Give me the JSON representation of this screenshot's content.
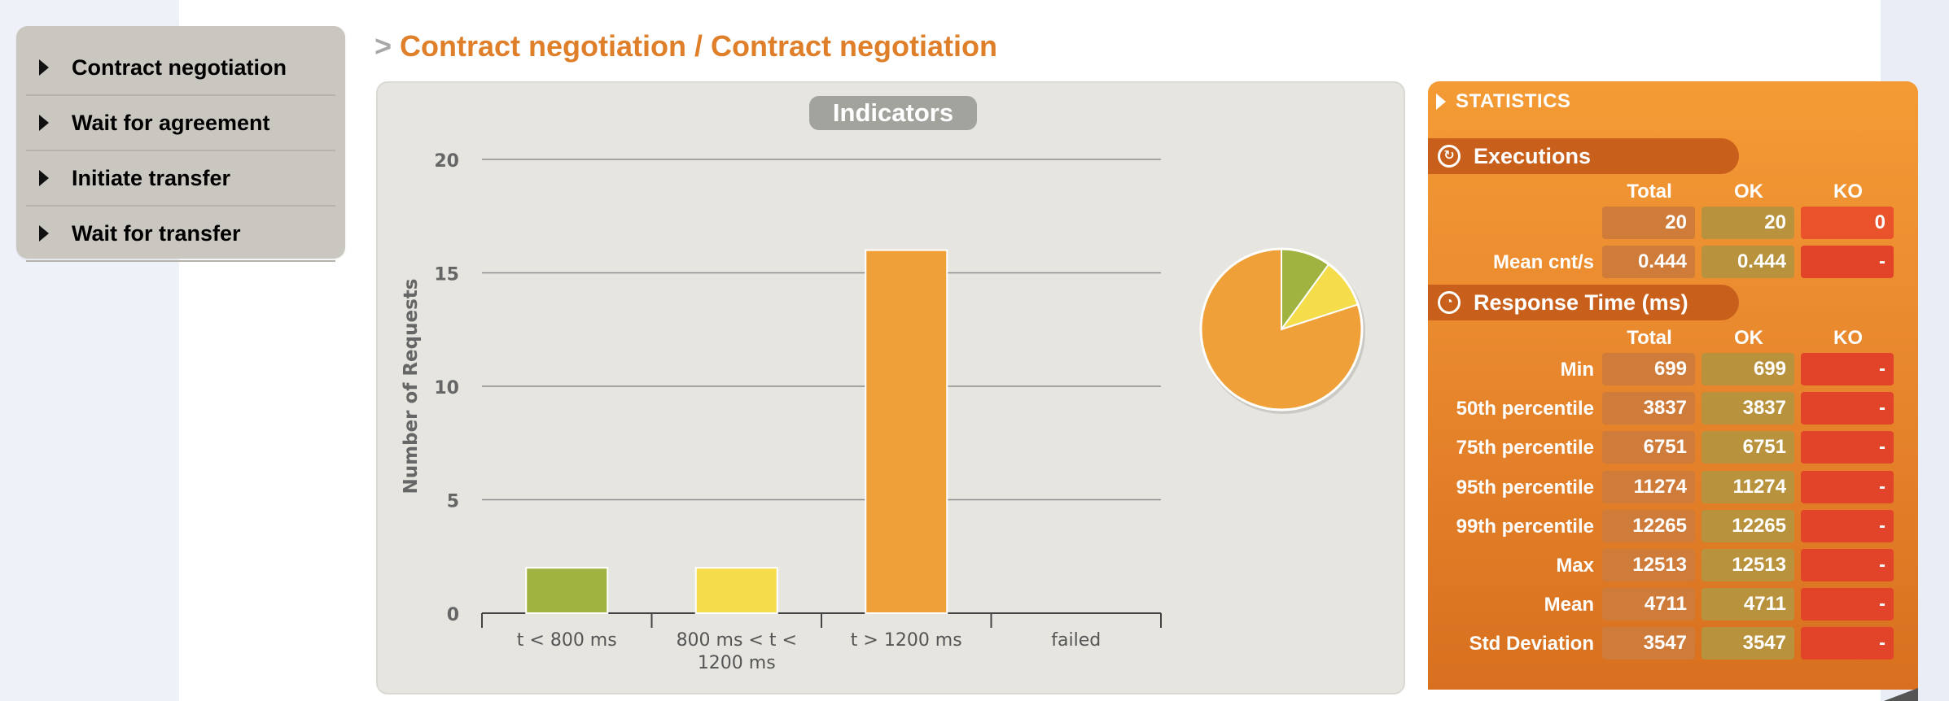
{
  "sidebar": {
    "items": [
      {
        "label": "Contract negotiation"
      },
      {
        "label": "Wait for agreement"
      },
      {
        "label": "Initiate transfer"
      },
      {
        "label": "Wait for transfer"
      }
    ]
  },
  "title": {
    "prefix": ">",
    "text": "Contract negotiation / Contract negotiation"
  },
  "chart": {
    "badge": "Indicators"
  },
  "chart_data": [
    {
      "type": "bar",
      "title": "Indicators",
      "ylabel": "Number of Requests",
      "xlabel": "",
      "ylim": [
        0,
        20
      ],
      "yticks": [
        0,
        5,
        10,
        15,
        20
      ],
      "grid": true,
      "categories": [
        "t < 800 ms",
        "800 ms < t < 1200 ms",
        "t > 1200 ms",
        "failed"
      ],
      "category_lines": [
        [
          "t < 800 ms"
        ],
        [
          "800 ms < t <",
          "1200 ms"
        ],
        [
          "t > 1200 ms"
        ],
        [
          "failed"
        ]
      ],
      "values": [
        2,
        2,
        16,
        0
      ],
      "colors": [
        "#a0b23f",
        "#f5dc4a",
        "#f0a038",
        "#e84a2c"
      ]
    },
    {
      "type": "pie",
      "labels": [
        "t < 800 ms",
        "800 ms < t < 1200 ms",
        "t > 1200 ms",
        "failed"
      ],
      "values": [
        2,
        2,
        16,
        0
      ],
      "colors": [
        "#a0b23f",
        "#f5dc4a",
        "#f0a038",
        "#e84a2c"
      ]
    }
  ],
  "stats": {
    "header": "STATISTICS",
    "executions": {
      "title": "Executions",
      "columns": [
        "Total",
        "OK",
        "KO"
      ],
      "rows": [
        {
          "label": "",
          "total": "20",
          "ok": "20",
          "ko": "0"
        },
        {
          "label": "Mean cnt/s",
          "total": "0.444",
          "ok": "0.444",
          "ko": "-"
        }
      ]
    },
    "response_time": {
      "title": "Response Time (ms)",
      "columns": [
        "Total",
        "OK",
        "KO"
      ],
      "rows": [
        {
          "label": "Min",
          "total": "699",
          "ok": "699",
          "ko": "-"
        },
        {
          "label": "50th percentile",
          "total": "3837",
          "ok": "3837",
          "ko": "-"
        },
        {
          "label": "75th percentile",
          "total": "6751",
          "ok": "6751",
          "ko": "-"
        },
        {
          "label": "95th percentile",
          "total": "11274",
          "ok": "11274",
          "ko": "-"
        },
        {
          "label": "99th percentile",
          "total": "12265",
          "ok": "12265",
          "ko": "-"
        },
        {
          "label": "Max",
          "total": "12513",
          "ok": "12513",
          "ko": "-"
        },
        {
          "label": "Mean",
          "total": "4711",
          "ok": "4711",
          "ko": "-"
        },
        {
          "label": "Std Deviation",
          "total": "3547",
          "ok": "3547",
          "ko": "-"
        }
      ]
    }
  }
}
